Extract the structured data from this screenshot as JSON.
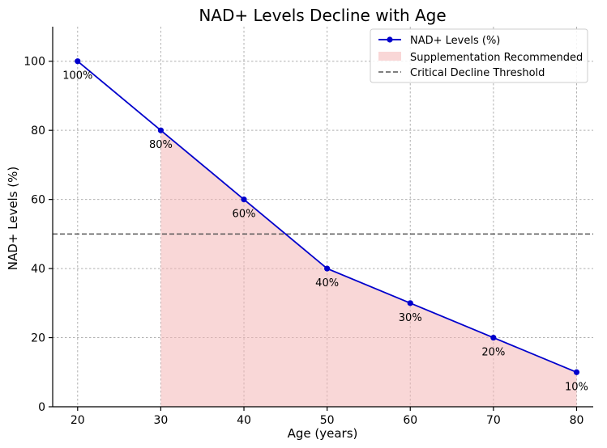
{
  "chart_data": {
    "type": "line",
    "title": "NAD+ Levels Decline with Age",
    "xlabel": "Age (years)",
    "ylabel": "NAD+ Levels (%)",
    "xlim": [
      17,
      82
    ],
    "ylim": [
      0,
      110
    ],
    "xticks": [
      20,
      30,
      40,
      50,
      60,
      70,
      80
    ],
    "yticks": [
      0,
      20,
      40,
      60,
      80,
      100
    ],
    "grid": true,
    "legend_position": "top-right",
    "series": [
      {
        "name": "NAD+ Levels (%)",
        "color": "#0000cc",
        "marker": "circle",
        "x": [
          20,
          30,
          40,
          50,
          60,
          70,
          80
        ],
        "y": [
          100,
          80,
          60,
          40,
          30,
          20,
          10
        ],
        "labels": [
          "100%",
          "80%",
          "60%",
          "40%",
          "30%",
          "20%",
          "10%"
        ]
      }
    ],
    "fill_region": {
      "name": "Supplementation Recommended",
      "color": "#f4b6b6",
      "opacity": 0.55,
      "x_from": 30,
      "x_to": 80
    },
    "threshold_line": {
      "name": "Critical Decline Threshold",
      "y": 50,
      "color": "#555555",
      "style": "dashed"
    }
  }
}
